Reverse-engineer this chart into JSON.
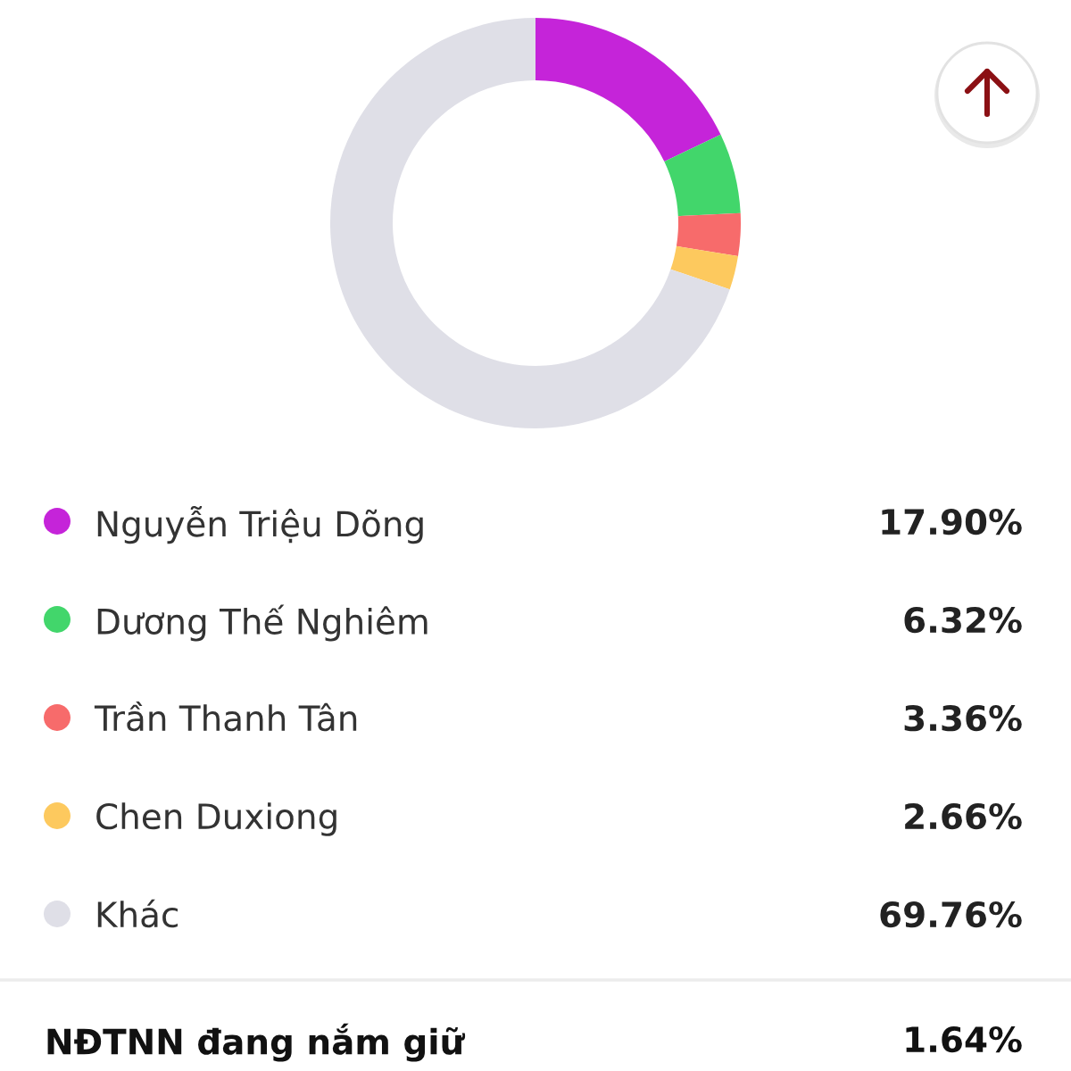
{
  "chart_data": {
    "type": "donut",
    "categories": [
      "Nguyễn Triệu Dõng",
      "Dương Thế Nghiêm",
      "Trần Thanh Tân",
      "Chen Duxiong",
      "Khác"
    ],
    "values": [
      17.9,
      6.32,
      3.36,
      2.66,
      69.76
    ],
    "colors": [
      "#c524d9",
      "#42d66b",
      "#f76b6b",
      "#fdc95e",
      "#dfdfe7"
    ],
    "value_labels": [
      "17.90%",
      "6.32%",
      "3.36%",
      "2.66%",
      "69.76%"
    ],
    "legend": "bottom",
    "annotations": [
      "NĐTNN đang nắm giữ",
      "1.64%"
    ]
  }
}
